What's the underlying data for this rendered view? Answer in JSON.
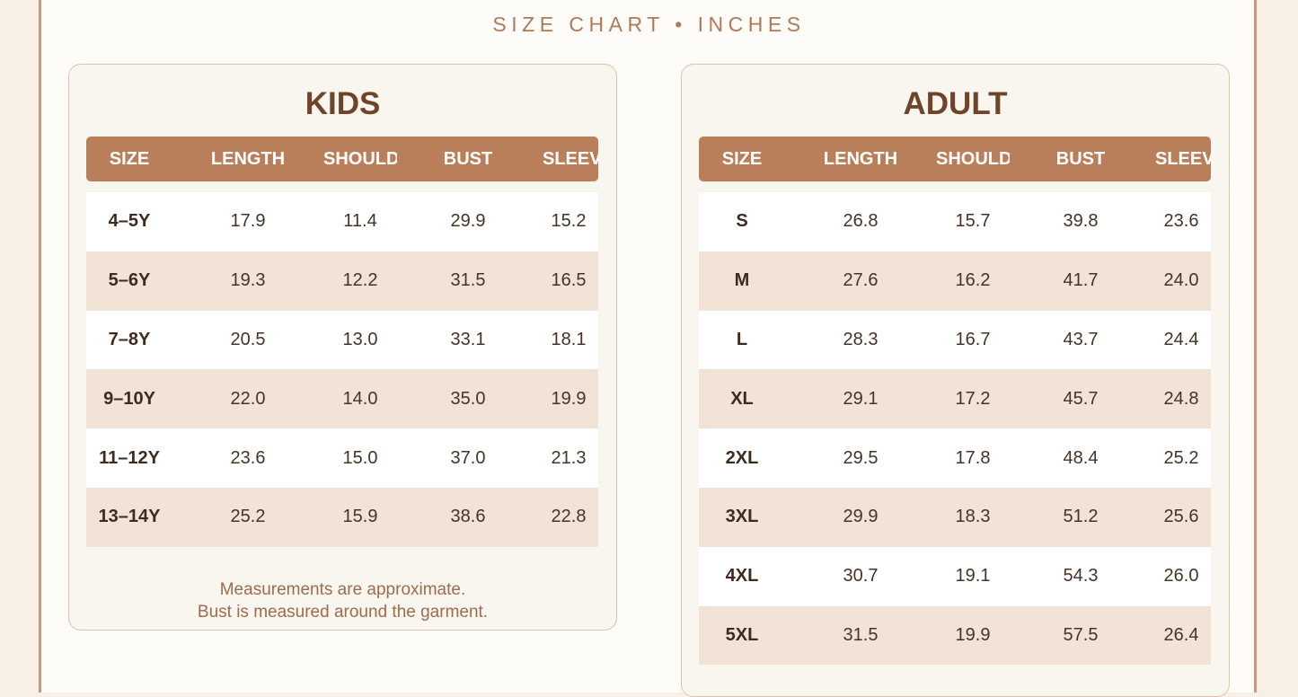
{
  "header": {
    "title": "SIZE CHART • INCHES"
  },
  "columns": [
    "SIZE",
    "LENGTH",
    "SHOULDER",
    "BUST",
    "SLEEVE"
  ],
  "kids": {
    "title": "KIDS",
    "rows": [
      [
        "4–5Y",
        "17.9",
        "11.4",
        "29.9",
        "15.2"
      ],
      [
        "5–6Y",
        "19.3",
        "12.2",
        "31.5",
        "16.5"
      ],
      [
        "7–8Y",
        "20.5",
        "13.0",
        "33.1",
        "18.1"
      ],
      [
        "9–10Y",
        "22.0",
        "14.0",
        "35.0",
        "19.9"
      ],
      [
        "11–12Y",
        "23.6",
        "15.0",
        "37.0",
        "21.3"
      ],
      [
        "13–14Y",
        "25.2",
        "15.9",
        "38.6",
        "22.8"
      ]
    ],
    "note_line1": "Measurements are approximate.",
    "note_line2": "Bust is measured around the garment."
  },
  "adult": {
    "title": "ADULT",
    "rows": [
      [
        "S",
        "26.8",
        "15.7",
        "39.8",
        "23.6"
      ],
      [
        "M",
        "27.6",
        "16.2",
        "41.7",
        "24.0"
      ],
      [
        "L",
        "28.3",
        "16.7",
        "43.7",
        "24.4"
      ],
      [
        "XL",
        "29.1",
        "17.2",
        "45.7",
        "24.8"
      ],
      [
        "2XL",
        "29.5",
        "17.8",
        "48.4",
        "25.2"
      ],
      [
        "3XL",
        "29.9",
        "18.3",
        "51.2",
        "25.6"
      ],
      [
        "4XL",
        "30.7",
        "19.1",
        "54.3",
        "26.0"
      ],
      [
        "5XL",
        "31.5",
        "19.9",
        "57.5",
        "26.4"
      ]
    ]
  },
  "colors": {
    "accent": "#b97f5a",
    "heading": "#6f4529",
    "row_alt": "#f2e3d7",
    "background": "#f8efe7"
  }
}
